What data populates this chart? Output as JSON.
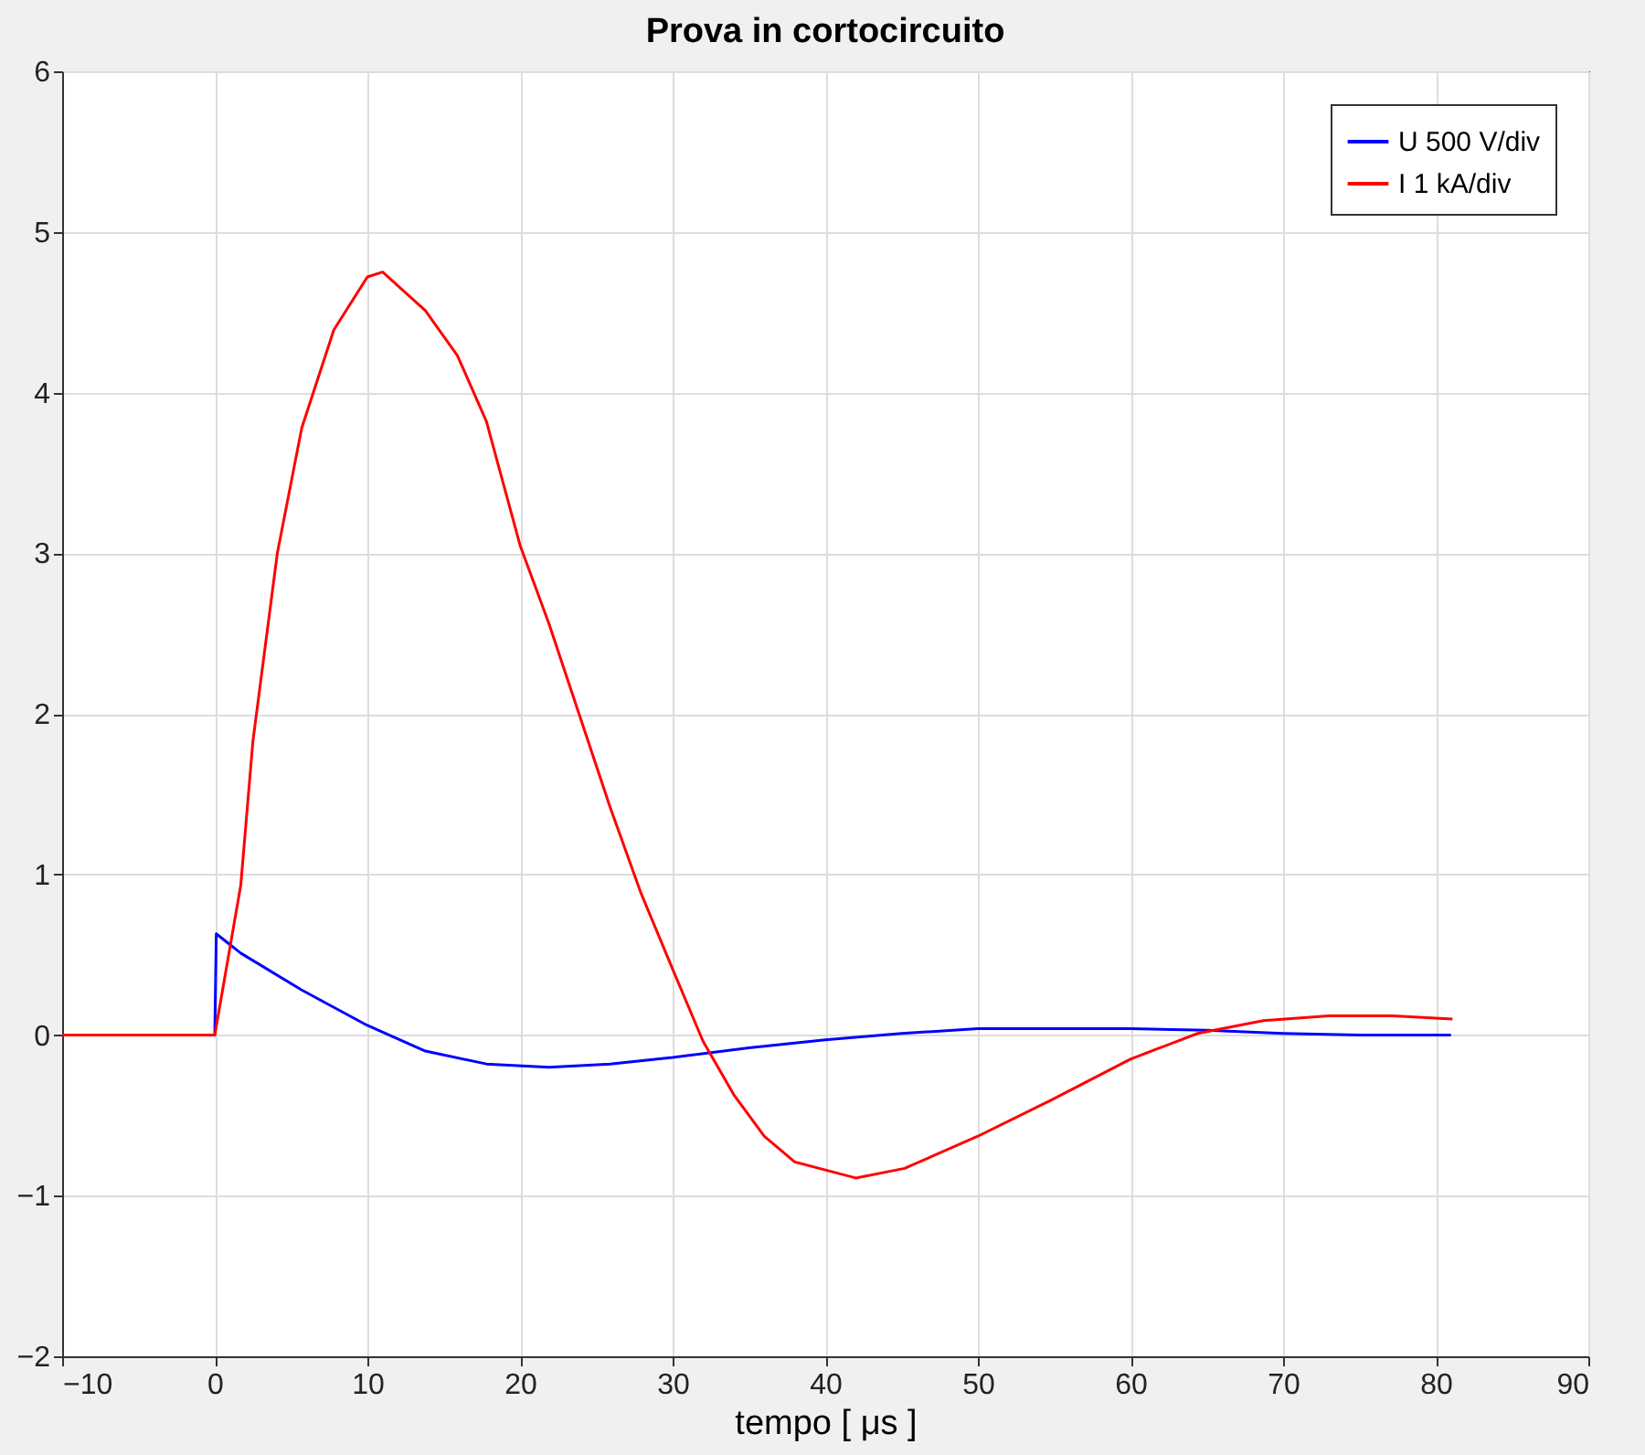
{
  "chart_data": {
    "type": "line",
    "title": "Prova in cortocircuito",
    "xlabel": "tempo [ μs ]",
    "xlim": [
      -10,
      90
    ],
    "xticks": [
      -10,
      0,
      10,
      20,
      30,
      40,
      50,
      60,
      70,
      80,
      90
    ],
    "ylim": [
      -2,
      6
    ],
    "yticks": [
      -2,
      -1,
      0,
      1,
      2,
      3,
      4,
      5,
      6
    ],
    "grid": true,
    "legend": "top right",
    "marker": "none",
    "line_style": "solid",
    "series": [
      {
        "name": "U 500 V/div",
        "color": "#0000ff",
        "x": [
          -10,
          -5,
          0,
          0.1,
          1.7,
          5.7,
          10,
          13.8,
          17.8,
          21.9,
          25.9,
          30,
          35,
          40,
          45,
          50,
          55,
          60,
          65,
          70,
          75,
          81
        ],
        "values": [
          0,
          0,
          0,
          0.63,
          0.51,
          0.28,
          0.06,
          -0.1,
          -0.18,
          -0.2,
          -0.18,
          -0.14,
          -0.08,
          -0.03,
          0.01,
          0.04,
          0.04,
          0.04,
          0.03,
          0.01,
          0.0,
          0.0
        ]
      },
      {
        "name": "I 1 kA/div",
        "color": "#ff0000",
        "x": [
          -10,
          -5,
          0,
          1.7,
          2.5,
          4.1,
          5.7,
          7.8,
          10,
          11,
          13.8,
          15.9,
          17.8,
          20,
          21.9,
          23.9,
          25.9,
          27.9,
          30,
          32,
          34,
          36,
          38,
          42,
          45.2,
          50,
          54.9,
          60,
          64.4,
          68.7,
          73,
          77.2,
          81.1
        ],
        "values": [
          0,
          0,
          0,
          0.93,
          1.83,
          3.0,
          3.78,
          4.39,
          4.72,
          4.75,
          4.51,
          4.23,
          3.82,
          3.05,
          2.56,
          1.99,
          1.42,
          0.89,
          0.41,
          -0.04,
          -0.37,
          -0.63,
          -0.79,
          -0.89,
          -0.83,
          -0.63,
          -0.4,
          -0.15,
          0.01,
          0.09,
          0.12,
          0.12,
          0.1
        ]
      }
    ]
  }
}
